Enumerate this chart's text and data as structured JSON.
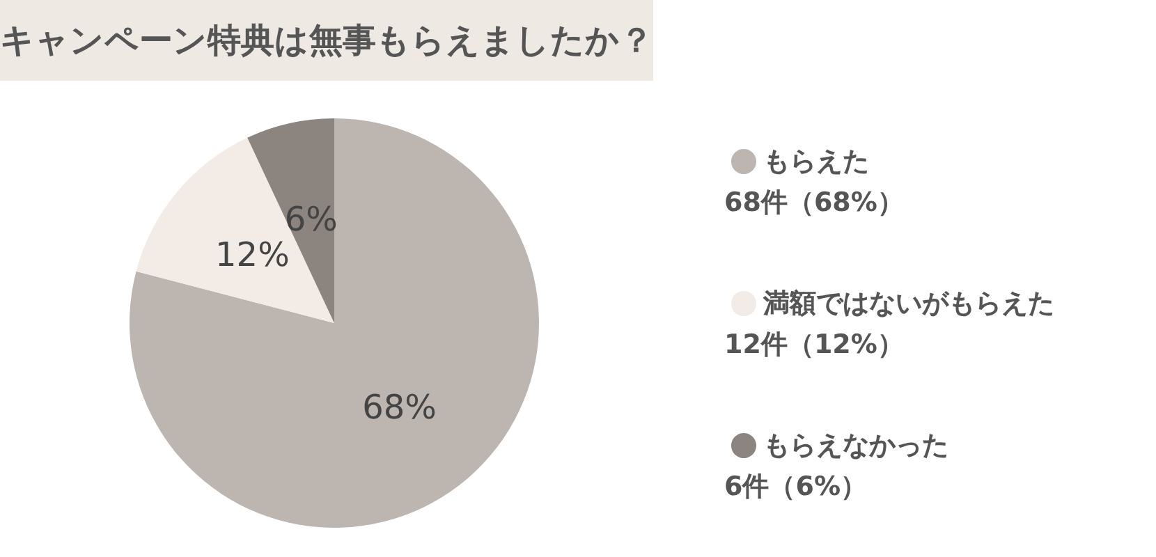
{
  "chart_data": {
    "type": "pie",
    "title": "キャンペーン特典は無事もらえましたか？",
    "categories": [
      "もらえた",
      "満額ではないがもらえた",
      "もらえなかった"
    ],
    "values": [
      68,
      12,
      6
    ],
    "colors": [
      "#bcb5b0",
      "#f2ebe6",
      "#8b847f"
    ],
    "value_labels": [
      "68%",
      "12%",
      "6%"
    ],
    "annotations": [
      "68件（68%）",
      "12件（12%）",
      "6件（6%）"
    ],
    "legend": "right"
  }
}
